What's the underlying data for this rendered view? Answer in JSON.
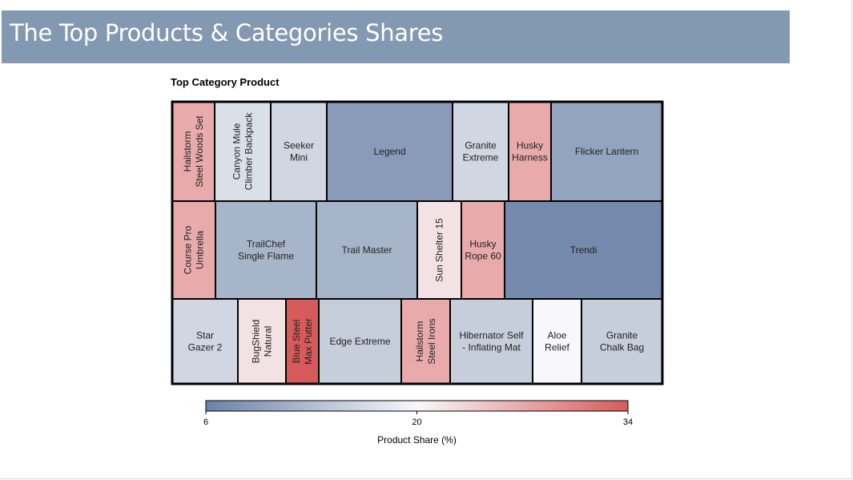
{
  "header": {
    "title": "The Top Products & Categories Shares"
  },
  "chart_data": {
    "type": "treemap",
    "title": "Top Category Product",
    "color_scale": {
      "min": 6,
      "mid": 20,
      "max": 34,
      "colors": [
        "#6b82a6",
        "#f8f8fa",
        "#d85b5b"
      ],
      "label": "Product Share (%)",
      "ticks": [
        "6",
        "20",
        "34"
      ]
    },
    "rows": [
      {
        "items": [
          {
            "name": "Hailstorm Steel Woods Set",
            "lines": [
              "Hailstorm",
              "Steel Woods Set"
            ],
            "vertical": true,
            "value": 27
          },
          {
            "name": "Canyon Mule Climber Backpack",
            "lines": [
              "Canyon Mule",
              "Climber Backpack"
            ],
            "vertical": true,
            "value": 17
          },
          {
            "name": "Seeker Mini",
            "lines": [
              "Seeker",
              "Mini"
            ],
            "vertical": false,
            "value": 16
          },
          {
            "name": "Legend",
            "lines": [
              "Legend"
            ],
            "vertical": false,
            "value": 9
          },
          {
            "name": "Granite Extreme",
            "lines": [
              "Granite",
              "Extreme"
            ],
            "vertical": false,
            "value": 16
          },
          {
            "name": "Husky Harness",
            "lines": [
              "Husky",
              "Harness"
            ],
            "vertical": false,
            "value": 27
          },
          {
            "name": "Flicker Lantern",
            "lines": [
              "Flicker Lantern"
            ],
            "vertical": false,
            "value": 10
          }
        ]
      },
      {
        "items": [
          {
            "name": "Course Pro Umbrella",
            "lines": [
              "Course Pro",
              "Umbrella"
            ],
            "vertical": true,
            "value": 27
          },
          {
            "name": "TrailChef Single Flame",
            "lines": [
              "TrailChef",
              "Single Flame"
            ],
            "vertical": false,
            "value": 12
          },
          {
            "name": "Trail Master",
            "lines": [
              "Trail Master"
            ],
            "vertical": false,
            "value": 12
          },
          {
            "name": "Sun Shelter 15",
            "lines": [
              "Sun Shelter 15"
            ],
            "vertical": true,
            "value": 22
          },
          {
            "name": "Husky Rope 60",
            "lines": [
              "Husky",
              "Rope 60"
            ],
            "vertical": false,
            "value": 27
          },
          {
            "name": "Trendi",
            "lines": [
              "Trendi"
            ],
            "vertical": false,
            "value": 7
          }
        ]
      },
      {
        "items": [
          {
            "name": "Star Gazer 2",
            "lines": [
              "Star",
              "Gazer 2"
            ],
            "vertical": false,
            "value": 16
          },
          {
            "name": "BugShield Natural",
            "lines": [
              "BugShield",
              "Natural"
            ],
            "vertical": true,
            "value": 22
          },
          {
            "name": "Blue Steel Max Putter",
            "lines": [
              "Blue Steel",
              "Max Putter"
            ],
            "vertical": true,
            "value": 34
          },
          {
            "name": "Edge Extreme",
            "lines": [
              "Edge Extreme"
            ],
            "vertical": false,
            "value": 15
          },
          {
            "name": "Hailstorm Steel Irons",
            "lines": [
              "Hailstorm",
              "Steel Irons"
            ],
            "vertical": true,
            "value": 27
          },
          {
            "name": "Hibernator Self - Inflating Mat",
            "lines": [
              "Hibernator Self",
              "- Inflating Mat"
            ],
            "vertical": false,
            "value": 15
          },
          {
            "name": "Aloe Relief",
            "lines": [
              "Aloe",
              "Relief"
            ],
            "vertical": false,
            "value": 20
          },
          {
            "name": "Granite Chalk Bag",
            "lines": [
              "Granite",
              "Chalk Bag"
            ],
            "vertical": false,
            "value": 15
          }
        ]
      }
    ]
  }
}
